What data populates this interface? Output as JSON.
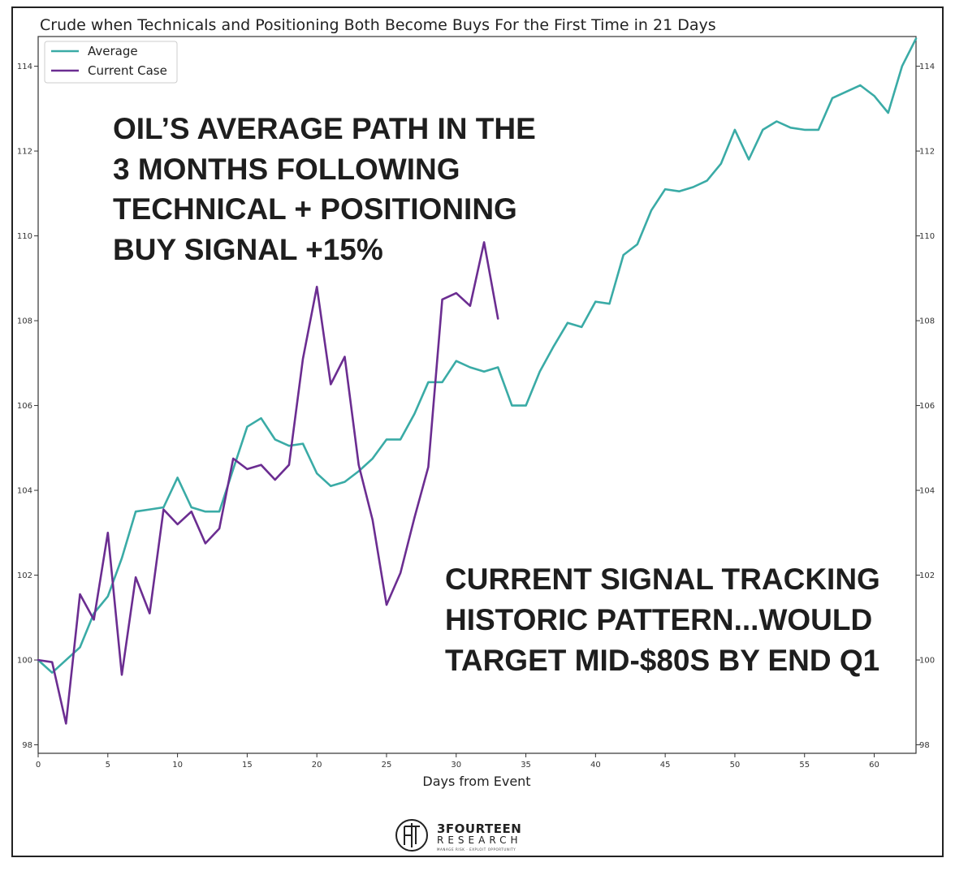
{
  "chart_data": {
    "type": "line",
    "title": "Crude when Technicals and Positioning Both Become Buys For the First Time in 21 Days",
    "xlabel": "Days from Event",
    "ylabel": "",
    "xlim": [
      0,
      63
    ],
    "ylim": [
      97.8,
      114.7
    ],
    "xticks": [
      0,
      5,
      10,
      15,
      20,
      25,
      30,
      35,
      40,
      45,
      50,
      55,
      60
    ],
    "yticks": [
      98,
      100,
      102,
      104,
      106,
      108,
      110,
      112,
      114
    ],
    "grid": false,
    "legend_position": "top-left",
    "series": [
      {
        "name": "Average",
        "color": "#3aaba6",
        "x": [
          0,
          1,
          2,
          3,
          4,
          5,
          6,
          7,
          8,
          9,
          10,
          11,
          12,
          13,
          14,
          15,
          16,
          17,
          18,
          19,
          20,
          21,
          22,
          23,
          24,
          25,
          26,
          27,
          28,
          29,
          30,
          31,
          32,
          33,
          34,
          35,
          36,
          37,
          38,
          39,
          40,
          41,
          42,
          43,
          44,
          45,
          46,
          47,
          48,
          49,
          50,
          51,
          52,
          53,
          54,
          55,
          56,
          57,
          58,
          59,
          60,
          61,
          62,
          63
        ],
        "values": [
          100.0,
          99.7,
          100.0,
          100.3,
          101.1,
          101.5,
          102.4,
          103.5,
          103.55,
          103.6,
          104.3,
          103.6,
          103.5,
          103.5,
          104.5,
          105.5,
          105.7,
          105.2,
          105.05,
          105.1,
          104.4,
          104.1,
          104.2,
          104.45,
          104.75,
          105.2,
          105.2,
          105.8,
          106.55,
          106.55,
          107.05,
          106.9,
          106.8,
          106.9,
          106.0,
          106.0,
          106.8,
          107.4,
          107.95,
          107.85,
          108.45,
          108.4,
          109.55,
          109.8,
          110.6,
          111.1,
          111.05,
          111.15,
          111.3,
          111.7,
          112.5,
          111.8,
          112.5,
          112.7,
          112.55,
          112.5,
          112.5,
          113.25,
          113.4,
          113.55,
          113.3,
          112.9,
          114.0,
          114.65
        ]
      },
      {
        "name": "Current Case",
        "color": "#6b2d91",
        "x": [
          0,
          1,
          2,
          3,
          4,
          5,
          6,
          7,
          8,
          9,
          10,
          11,
          12,
          13,
          14,
          15,
          16,
          17,
          18,
          19,
          20,
          21,
          22,
          23,
          24,
          25,
          26,
          27,
          28,
          29,
          30,
          31,
          32,
          33
        ],
        "values": [
          100.0,
          99.95,
          98.5,
          101.55,
          100.95,
          103.0,
          99.65,
          101.95,
          101.1,
          103.55,
          103.2,
          103.5,
          102.75,
          103.1,
          104.75,
          104.5,
          104.6,
          104.25,
          104.6,
          107.1,
          108.8,
          106.5,
          107.15,
          104.6,
          103.3,
          101.3,
          102.05,
          103.35,
          104.55,
          108.5,
          108.65,
          108.35,
          109.85,
          108.05
        ]
      }
    ],
    "annotations": [
      "OIL’S AVERAGE PATH IN THE",
      "3 MONTHS FOLLOWING",
      "TECHNICAL + POSITIONING",
      "BUY SIGNAL +15%",
      "CURRENT SIGNAL TRACKING",
      "HISTORIC PATTERN...WOULD",
      "TARGET MID-$80S BY END Q1"
    ]
  },
  "logo": {
    "line1": "3FOURTEEN",
    "line2": "RESEARCH",
    "tagline": "MANAGE RISK · EXPLOIT OPPORTUNITY"
  }
}
